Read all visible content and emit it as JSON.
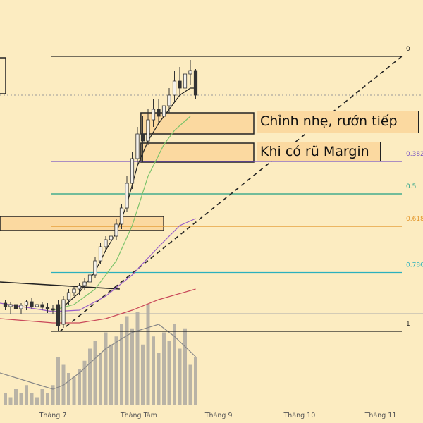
{
  "chart_data": {
    "type": "candlestick",
    "xlim": [
      0,
      160
    ],
    "ylim": [
      -105,
      470
    ],
    "y2lim": [
      0,
      100
    ],
    "xticks": [
      {
        "value": 20,
        "label": "Tháng 7"
      },
      {
        "value": 52.5,
        "label": "Tháng Tám"
      },
      {
        "value": 82.7,
        "label": "Tháng 9"
      },
      {
        "value": 113.3,
        "label": "Tháng 10"
      },
      {
        "value": 144,
        "label": "Tháng 11"
      }
    ],
    "fib": {
      "x": [
        19.2,
        152
      ],
      "levels": [
        {
          "value": 390,
          "label": "0"
        },
        {
          "value": 241,
          "label": "0.382"
        },
        {
          "value": 195,
          "label": "0.5"
        },
        {
          "value": 149,
          "label": "0.618"
        },
        {
          "value": 83.5,
          "label": "0.786"
        },
        {
          "value": 0,
          "label": "1"
        }
      ],
      "colors": [
        "#222222",
        "#7a55c4",
        "#1f9e84",
        "#e3962a",
        "#2bb0bd",
        "#222222"
      ]
    },
    "candles": {
      "up_color": "#f4f1ea",
      "down_color": "#333333",
      "x": [
        2,
        4,
        6,
        8,
        10,
        12,
        14,
        16,
        18,
        20,
        22,
        24,
        26,
        28,
        30,
        32,
        34,
        36,
        38,
        40,
        42,
        44,
        46,
        48,
        50,
        52,
        54,
        56,
        58,
        60,
        62,
        64,
        66,
        68,
        70,
        72,
        74
      ],
      "open": [
        40,
        35,
        38,
        32,
        37,
        42,
        35,
        38,
        34,
        32,
        38,
        10,
        45,
        55,
        60,
        65,
        70,
        80,
        100,
        120,
        130,
        135,
        152,
        175,
        210,
        245,
        280,
        270,
        300,
        315,
        305,
        320,
        335,
        355,
        345,
        365,
        370
      ],
      "high": [
        45,
        42,
        44,
        40,
        45,
        48,
        42,
        42,
        40,
        38,
        45,
        50,
        60,
        65,
        68,
        75,
        85,
        105,
        125,
        135,
        145,
        160,
        180,
        220,
        255,
        290,
        305,
        315,
        330,
        330,
        335,
        345,
        370,
        375,
        380,
        385,
        372
      ],
      "low": [
        30,
        25,
        28,
        25,
        30,
        32,
        28,
        30,
        26,
        25,
        0,
        5,
        38,
        50,
        52,
        58,
        65,
        75,
        95,
        112,
        125,
        130,
        145,
        170,
        202,
        238,
        240,
        265,
        290,
        295,
        298,
        310,
        325,
        335,
        330,
        350,
        330
      ],
      "close": [
        35,
        38,
        32,
        37,
        42,
        35,
        38,
        34,
        32,
        30,
        8,
        45,
        55,
        60,
        65,
        70,
        80,
        100,
        120,
        130,
        135,
        152,
        175,
        210,
        245,
        280,
        270,
        300,
        315,
        305,
        320,
        335,
        355,
        345,
        365,
        370,
        335
      ]
    },
    "volume": {
      "color": "#b9b3a6",
      "values": [
        3,
        2,
        4,
        3,
        5,
        3,
        2,
        4,
        3,
        5,
        12,
        10,
        8,
        7,
        9,
        11,
        14,
        16,
        13,
        18,
        15,
        17,
        20,
        22,
        19,
        23,
        15,
        25,
        17,
        13,
        18,
        16,
        20,
        14,
        19,
        10,
        12
      ]
    },
    "overlays": [
      {
        "color": "#222222",
        "x": [
          24,
          30,
          36,
          40,
          44,
          48,
          52,
          56,
          60,
          64,
          68,
          72,
          74
        ],
        "values": [
          35,
          55,
          85,
          115,
          140,
          180,
          235,
          270,
          295,
          315,
          335,
          345,
          345
        ]
      },
      {
        "color": "#7cc36a",
        "x": [
          20,
          28,
          36,
          44,
          50,
          56,
          62,
          66,
          72
        ],
        "values": [
          30,
          38,
          60,
          100,
          150,
          220,
          265,
          285,
          305
        ]
      },
      {
        "color": "#9a5fc9",
        "x": [
          0,
          20,
          30,
          40,
          50,
          60,
          68,
          74
        ],
        "values": [
          40,
          28,
          30,
          50,
          80,
          120,
          150,
          160
        ]
      },
      {
        "color": "#c9485a",
        "x": [
          0,
          20,
          30,
          40,
          50,
          60,
          74
        ],
        "values": [
          18,
          12,
          12,
          18,
          30,
          45,
          60
        ]
      }
    ],
    "volume_ma": {
      "color": "#888888",
      "x": [
        0,
        20,
        24,
        30,
        40,
        50,
        60,
        66,
        74
      ],
      "values": [
        8,
        4,
        5,
        8,
        14,
        18,
        20,
        17,
        12
      ]
    },
    "trendlines": [
      {
        "color": "#222222",
        "dash": true,
        "x": [
          22.7,
          152
        ],
        "values": [
          0,
          390
        ]
      },
      {
        "color": "#222222",
        "dash": false,
        "x": [
          0,
          45.3
        ],
        "values": [
          70,
          60
        ]
      }
    ],
    "hlines": [
      {
        "value": 335,
        "color": "#999999",
        "dash": true
      },
      {
        "value": 25,
        "color": "#aaaaaa",
        "dash": false
      }
    ],
    "zones": [
      {
        "x": [
          53.3,
          96
        ],
        "y": [
          280,
          310
        ]
      },
      {
        "x": [
          53.3,
          96
        ],
        "y": [
          240,
          267
        ]
      },
      {
        "x": [
          0,
          61.9
        ],
        "y": [
          143,
          163
        ]
      }
    ],
    "annotations": [
      "Chỉnh nhẹ, rướn tiếp",
      "Khi có rũ Margin"
    ]
  }
}
